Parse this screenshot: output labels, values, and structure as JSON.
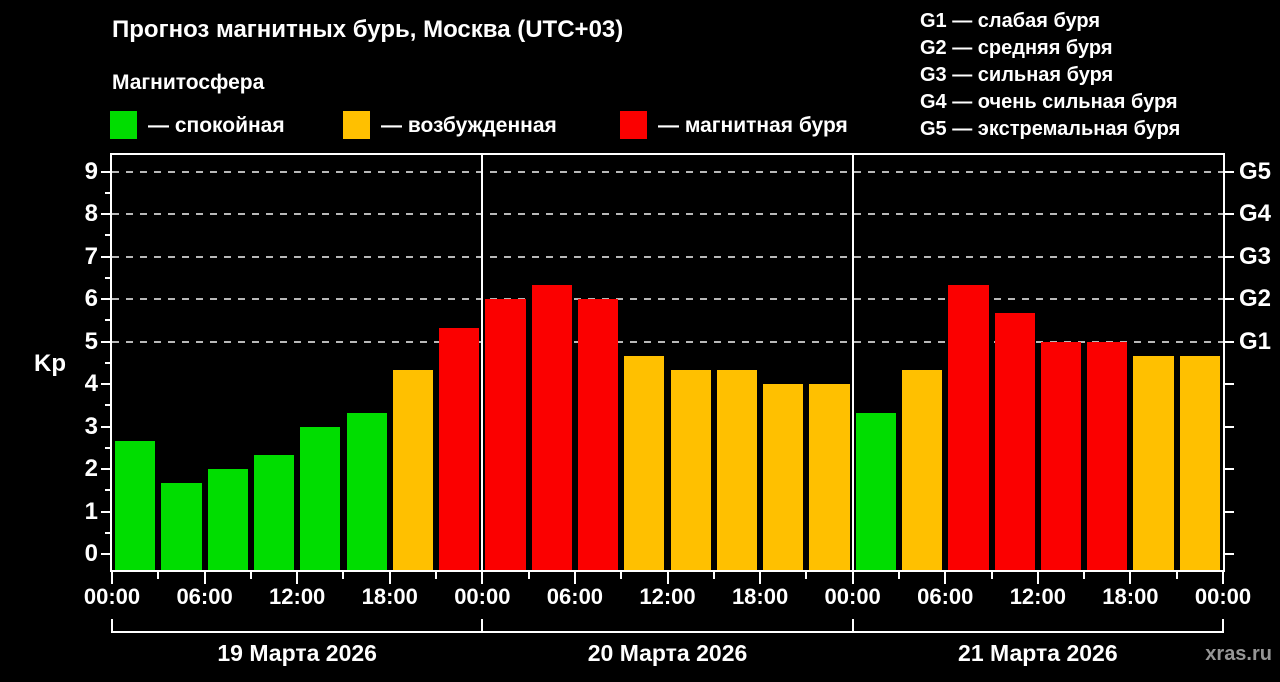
{
  "title": "Прогноз магнитных бурь, Москва (UTC+03)",
  "subtitle": "Магнитосфера",
  "watermark": "xras.ru",
  "colors": {
    "background": "#000000",
    "axis": "#ffffff",
    "grid": "#b8b8b8",
    "watermark": "#969696",
    "quiet": "#00dd00",
    "unsettled": "#ffc000",
    "storm": "#fb0000"
  },
  "legend": [
    {
      "category": "quiet",
      "label": "— спокойная"
    },
    {
      "category": "unsettled",
      "label": "— возбужденная"
    },
    {
      "category": "storm",
      "label": "— магнитная буря"
    }
  ],
  "g_scale_legend": [
    "G1 — слабая буря",
    "G2 — средняя буря",
    "G3 — сильная буря",
    "G4 — очень сильная буря",
    "G5 — экстремальная буря"
  ],
  "chart_data": {
    "type": "bar",
    "title": "Прогноз магнитных бурь, Москва (UTC+03)",
    "ylabel": "Kp",
    "ylim": [
      -0.4,
      9.4
    ],
    "yticks": [
      0,
      1,
      2,
      3,
      4,
      5,
      6,
      7,
      8,
      9
    ],
    "grid_values": [
      5,
      6,
      7,
      8,
      9
    ],
    "right_axis_labels": [
      {
        "value": 5,
        "label": "G1"
      },
      {
        "value": 6,
        "label": "G2"
      },
      {
        "value": 7,
        "label": "G3"
      },
      {
        "value": 8,
        "label": "G4"
      },
      {
        "value": 9,
        "label": "G5"
      }
    ],
    "x_tick_labels": [
      "00:00",
      "06:00",
      "12:00",
      "18:00",
      "00:00",
      "06:00",
      "12:00",
      "18:00",
      "00:00",
      "06:00",
      "12:00",
      "18:00",
      "00:00"
    ],
    "hours_per_bar": 3,
    "total_hours": 72,
    "grid": "dashed horizontal lines at Kp 5-9",
    "legend_position": "top",
    "days": [
      {
        "label": "19 Марта 2026",
        "values": [
          2.67,
          1.67,
          2.0,
          2.33,
          3.0,
          3.33,
          4.33,
          5.33
        ],
        "categories": [
          "quiet",
          "quiet",
          "quiet",
          "quiet",
          "quiet",
          "quiet",
          "unsettled",
          "storm"
        ]
      },
      {
        "label": "20 Марта 2026",
        "values": [
          6.0,
          6.33,
          6.0,
          4.67,
          4.33,
          4.33,
          4.0,
          4.0
        ],
        "categories": [
          "storm",
          "storm",
          "storm",
          "unsettled",
          "unsettled",
          "unsettled",
          "unsettled",
          "unsettled"
        ]
      },
      {
        "label": "21 Марта 2026",
        "values": [
          3.33,
          4.33,
          6.33,
          5.67,
          5.0,
          5.0,
          4.67,
          4.67
        ],
        "categories": [
          "quiet",
          "unsettled",
          "storm",
          "storm",
          "storm",
          "storm",
          "unsettled",
          "unsettled"
        ]
      }
    ]
  }
}
